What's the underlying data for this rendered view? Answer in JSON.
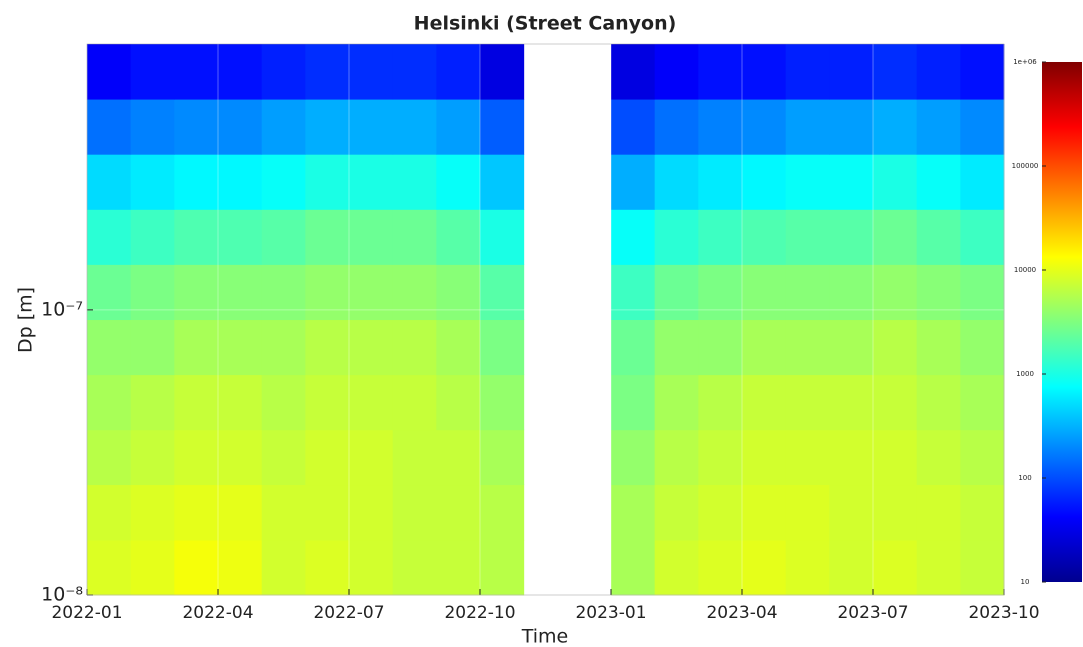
{
  "chart_data": {
    "type": "heatmap",
    "title": "Helsinki (Street Canyon)",
    "x_label": "Time",
    "y_label": "Dp [m]",
    "xbins": [
      "2022-01",
      "2022-02",
      "2022-03",
      "2022-04",
      "2022-05",
      "2022-06",
      "2022-07",
      "2022-08",
      "2022-09",
      "2022-10",
      "2022-11",
      "2022-12",
      "2023-01",
      "2023-02",
      "2023-03",
      "2023-04",
      "2023-05",
      "2023-06",
      "2023-07",
      "2023-08",
      "2023-09",
      "2023-10"
    ],
    "ybins": [
      1e-08,
      1.56e-08,
      2.44e-08,
      3.8e-08,
      5.93e-08,
      9.25e-08,
      1.444e-07,
      2.253e-07,
      3.516e-07,
      5.487e-07,
      8.56e-07
    ],
    "z": [
      [
        9000,
        10000,
        12000,
        11000,
        8000,
        9000,
        8000,
        7000,
        7000,
        6000,
        null,
        null,
        5000,
        8000,
        9000,
        10000,
        9000,
        8000,
        9000,
        8000,
        7000
      ],
      [
        8000,
        9000,
        10000,
        10000,
        8000,
        8000,
        8000,
        7000,
        7000,
        6000,
        null,
        null,
        5000,
        7000,
        8000,
        9000,
        9000,
        8000,
        8000,
        8000,
        7000
      ],
      [
        6000,
        7000,
        8000,
        8000,
        7000,
        8000,
        8000,
        7000,
        7000,
        5000,
        null,
        null,
        4000,
        6000,
        7000,
        8000,
        8000,
        8000,
        8000,
        7000,
        6000
      ],
      [
        5000,
        6000,
        7000,
        7000,
        6000,
        7000,
        7000,
        7000,
        6000,
        4000,
        null,
        null,
        3000,
        5000,
        6000,
        7000,
        7000,
        7000,
        7000,
        6000,
        5000
      ],
      [
        4000,
        4000,
        5000,
        5000,
        5000,
        6000,
        6000,
        6000,
        5000,
        3000,
        null,
        null,
        2500,
        4000,
        4000,
        5000,
        5000,
        5000,
        6000,
        5000,
        4000
      ],
      [
        2500,
        3000,
        3500,
        3500,
        3500,
        4000,
        4000,
        4000,
        3500,
        2000,
        null,
        null,
        1500,
        2500,
        3000,
        3500,
        3500,
        3500,
        4000,
        3500,
        3000
      ],
      [
        1200,
        1500,
        1800,
        1800,
        2000,
        2500,
        2500,
        2500,
        2000,
        1000,
        null,
        null,
        800,
        1200,
        1500,
        1800,
        2000,
        2000,
        2500,
        2000,
        1500
      ],
      [
        500,
        600,
        700,
        700,
        800,
        1000,
        1000,
        1000,
        800,
        400,
        null,
        null,
        300,
        500,
        600,
        700,
        800,
        800,
        1000,
        800,
        600
      ],
      [
        150,
        180,
        200,
        200,
        250,
        300,
        300,
        300,
        250,
        120,
        null,
        null,
        100,
        150,
        180,
        200,
        250,
        250,
        300,
        250,
        200
      ],
      [
        40,
        50,
        50,
        50,
        60,
        70,
        70,
        70,
        60,
        30,
        null,
        null,
        30,
        40,
        50,
        50,
        60,
        60,
        70,
        60,
        50
      ]
    ],
    "xlim": [
      "2022-01",
      "2023-10"
    ],
    "xticks": [
      "2022-01",
      "2022-04",
      "2022-07",
      "2022-10",
      "2023-01",
      "2023-04",
      "2023-07",
      "2023-10"
    ],
    "ylim": [
      1e-08,
      8.56e-07
    ],
    "yticks": [
      {
        "value": 1e-08,
        "label": "10⁻⁸"
      },
      {
        "value": 1e-07,
        "label": "10⁻⁷"
      }
    ],
    "y_scale": "log",
    "grid": true,
    "colormap": "jet",
    "zlim": [
      10,
      1000000
    ],
    "zticks": [
      10,
      100,
      1000,
      10000,
      100000,
      {
        "value": 1000000,
        "label": "1e+06"
      }
    ]
  }
}
